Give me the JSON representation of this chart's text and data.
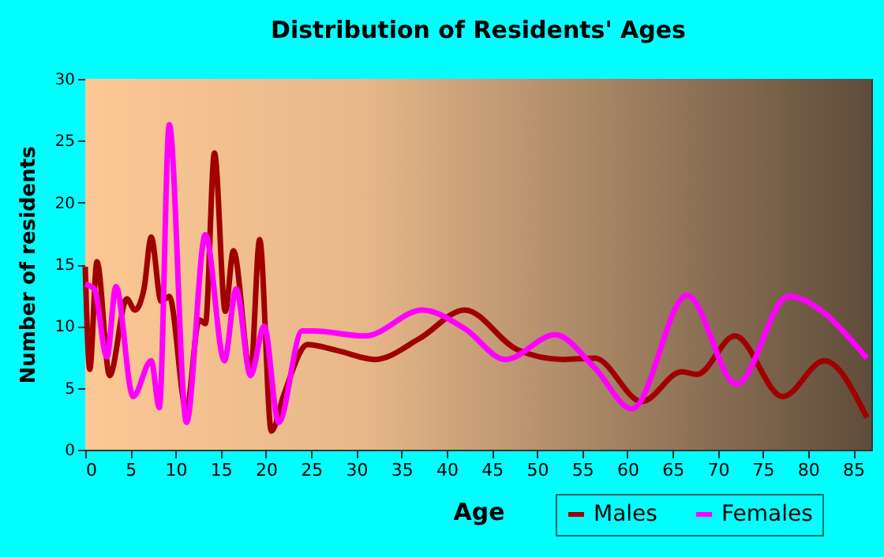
{
  "chart_data": {
    "type": "line",
    "title": "Distribution of Residents' Ages",
    "xlabel": "Age",
    "ylabel": "Number of residents",
    "xlim": [
      0,
      87
    ],
    "xticks": [
      0,
      5,
      10,
      15,
      20,
      25,
      30,
      35,
      40,
      45,
      50,
      55,
      60,
      65,
      70,
      75,
      80,
      85
    ],
    "ylim": [
      0,
      30
    ],
    "yticks": [
      0,
      5,
      10,
      15,
      20,
      25,
      30
    ],
    "grid": true,
    "legend": "bottom right",
    "line_style": "solid",
    "marker": "none",
    "series": [
      {
        "name": "Males",
        "color": "#a00000",
        "x": [
          0,
          0.5,
          1.3,
          2.7,
          4.6,
          5.5,
          6.5,
          7.3,
          8.4,
          9.3,
          11.2,
          12.6,
          13.3,
          14.3,
          15.5,
          16.4,
          18.3,
          19.3,
          20.6,
          22,
          24.6,
          28,
          32.1,
          37,
          42,
          47.8,
          52.9,
          56.4,
          61.6,
          66,
          67.7,
          71.9,
          77.2,
          81.8,
          86.5
        ],
        "values": [
          14.8,
          6.5,
          15.2,
          6,
          12.2,
          11.3,
          13,
          17.2,
          12,
          12.4,
          3.2,
          10.5,
          10.2,
          24,
          11.2,
          16.1,
          6.2,
          17,
          1.5,
          4.5,
          8.5,
          8,
          7.3,
          9,
          11.3,
          8.1,
          7.3,
          7.4,
          3.9,
          6.3,
          6.1,
          9.2,
          4.3,
          7.2,
          2.6
        ]
      },
      {
        "name": "Females",
        "color": "#ff00ff",
        "x": [
          0,
          1,
          2.4,
          3.4,
          5.3,
          7.3,
          8.2,
          9.3,
          11.2,
          13.3,
          15.4,
          16.7,
          18.3,
          19.8,
          21.4,
          24,
          25.2,
          31,
          37.3,
          42,
          46.5,
          52,
          56.4,
          60.5,
          66.6,
          72.1,
          77.8,
          86.5
        ],
        "values": [
          13.4,
          13,
          7.5,
          13.2,
          4.3,
          7.2,
          3.4,
          26.3,
          2.2,
          17.4,
          7.2,
          13,
          6,
          10,
          2.2,
          9.6,
          9.6,
          9.2,
          11.3,
          9.8,
          7.3,
          9.3,
          6.6,
          3.3,
          12.5,
          5.3,
          12.4,
          7.4
        ]
      }
    ]
  }
}
